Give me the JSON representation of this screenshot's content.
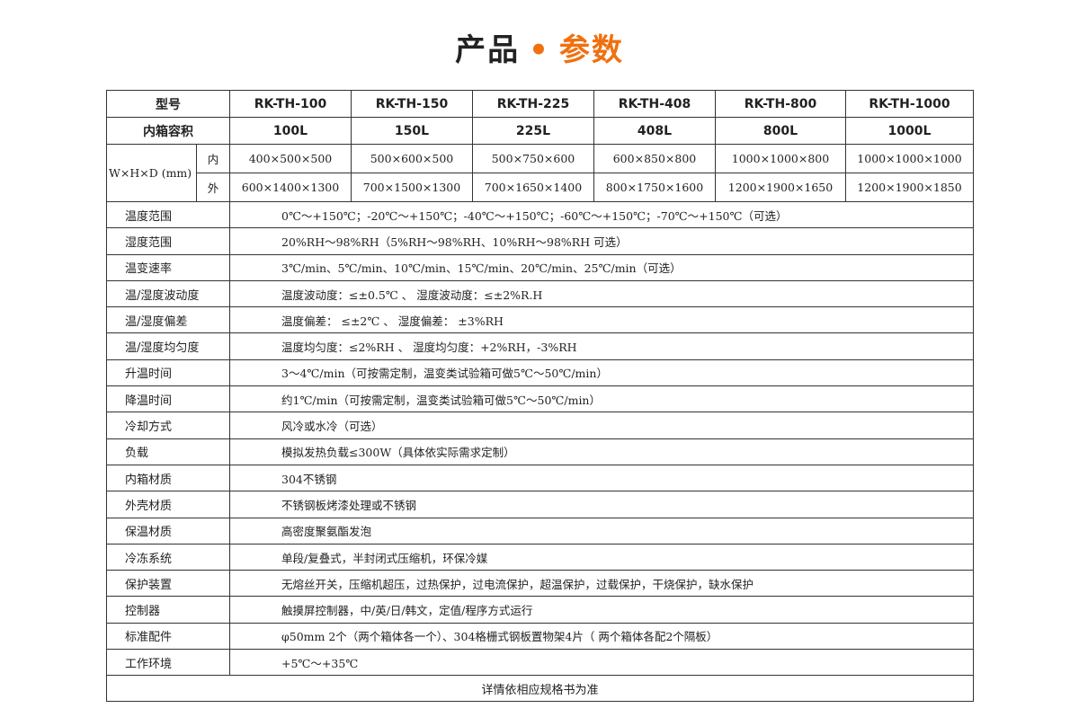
{
  "title": {
    "part1": "产品",
    "dot": "•",
    "part2": "参数"
  },
  "accent_color": "#f07010",
  "header": {
    "model_label": "型号",
    "models": [
      "RK-TH-100",
      "RK-TH-150",
      "RK-TH-225",
      "RK-TH-408",
      "RK-TH-800",
      "RK-TH-1000"
    ],
    "volume_label": "内箱容积",
    "volumes": [
      "100L",
      "150L",
      "225L",
      "408L",
      "800L",
      "1000L"
    ]
  },
  "dimensions": {
    "label": "W×H×D (mm)",
    "inner_label": "内",
    "outer_label": "外",
    "inner": [
      "400×500×500",
      "500×600×500",
      "500×750×600",
      "600×850×800",
      "1000×1000×800",
      "1000×1000×1000"
    ],
    "outer": [
      "600×1400×1300",
      "700×1500×1300",
      "700×1650×1400",
      "800×1750×1600",
      "1200×1900×1650",
      "1200×1900×1850"
    ]
  },
  "specs": [
    {
      "label": "温度范围",
      "value": "0℃～+150℃；-20℃～+150℃；-40℃～+150℃；-60℃～+150℃；-70℃～+150℃（可选）"
    },
    {
      "label": "湿度范围",
      "value": "20%RH～98%RH（5%RH～98%RH、10%RH～98%RH 可选）"
    },
    {
      "label": "温变速率",
      "value": "3℃/min、5℃/min、10℃/min、15℃/min、20℃/min、25℃/min（可选）"
    },
    {
      "label": "温/湿度波动度",
      "value": "温度波动度：≤±0.5℃ 、 湿度波动度：≤±2%R.H"
    },
    {
      "label": "温/湿度偏差",
      "value": "温度偏差：  ≤±2℃   、 湿度偏差： ±3%RH"
    },
    {
      "label": "温/湿度均匀度",
      "value": "温度均匀度：≤2%RH    、 湿度均匀度：+2%RH，-3%RH"
    },
    {
      "label": "升温时间",
      "value": "3～4℃/min（可按需定制，温变类试验箱可做5℃～50℃/min）"
    },
    {
      "label": "降温时间",
      "value": "约1℃/min（可按需定制，温变类试验箱可做5℃～50℃/min）"
    },
    {
      "label": "冷却方式",
      "value": "风冷或水冷（可选）"
    },
    {
      "label": "负载",
      "value": "模拟发热负载≤300W（具体依实际需求定制）"
    },
    {
      "label": "内箱材质",
      "value": "304不锈钢"
    },
    {
      "label": "外壳材质",
      "value": "不锈钢板烤漆处理或不锈钢"
    },
    {
      "label": "保温材质",
      "value": "高密度聚氨酯发泡"
    },
    {
      "label": "冷冻系统",
      "value": "单段/复叠式，半封闭式压缩机，环保冷媒"
    },
    {
      "label": "保护装置",
      "value": "无熔丝开关，压缩机超压，过热保护，过电流保护，超温保护，过载保护，干烧保护，缺水保护"
    },
    {
      "label": "控制器",
      "value": "触摸屏控制器，中/英/日/韩文，定值/程序方式运行"
    },
    {
      "label": "标准配件",
      "value": "φ50mm 2个（两个箱体各一个）、304格栅式钢板置物架4片（ 两个箱体各配2个隔板）"
    },
    {
      "label": "工作环境",
      "value": "+5℃～+35℃"
    }
  ],
  "footer": "详情依相应规格书为准"
}
